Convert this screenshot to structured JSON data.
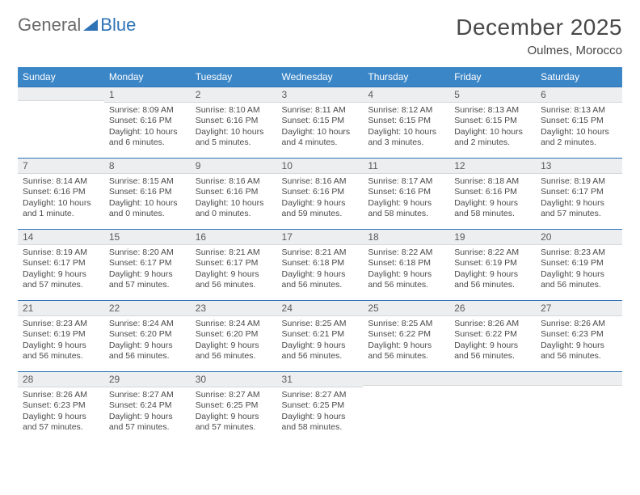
{
  "logo": {
    "text_general": "General",
    "text_blue": "Blue",
    "tri_color": "#2f73b6"
  },
  "title": "December 2025",
  "location": "Oulmes, Morocco",
  "colors": {
    "header_bg": "#3b86c7",
    "header_text": "#ffffff",
    "daynum_bg": "#eceef0",
    "daynum_border_top": "#2f73b6",
    "text": "#4a4a4a"
  },
  "day_headers": [
    "Sunday",
    "Monday",
    "Tuesday",
    "Wednesday",
    "Thursday",
    "Friday",
    "Saturday"
  ],
  "weeks": [
    [
      {
        "blank": true
      },
      {
        "n": "1",
        "sr": "Sunrise: 8:09 AM",
        "ss": "Sunset: 6:16 PM",
        "dl": "Daylight: 10 hours and 6 minutes."
      },
      {
        "n": "2",
        "sr": "Sunrise: 8:10 AM",
        "ss": "Sunset: 6:16 PM",
        "dl": "Daylight: 10 hours and 5 minutes."
      },
      {
        "n": "3",
        "sr": "Sunrise: 8:11 AM",
        "ss": "Sunset: 6:15 PM",
        "dl": "Daylight: 10 hours and 4 minutes."
      },
      {
        "n": "4",
        "sr": "Sunrise: 8:12 AM",
        "ss": "Sunset: 6:15 PM",
        "dl": "Daylight: 10 hours and 3 minutes."
      },
      {
        "n": "5",
        "sr": "Sunrise: 8:13 AM",
        "ss": "Sunset: 6:15 PM",
        "dl": "Daylight: 10 hours and 2 minutes."
      },
      {
        "n": "6",
        "sr": "Sunrise: 8:13 AM",
        "ss": "Sunset: 6:15 PM",
        "dl": "Daylight: 10 hours and 2 minutes."
      }
    ],
    [
      {
        "n": "7",
        "sr": "Sunrise: 8:14 AM",
        "ss": "Sunset: 6:16 PM",
        "dl": "Daylight: 10 hours and 1 minute."
      },
      {
        "n": "8",
        "sr": "Sunrise: 8:15 AM",
        "ss": "Sunset: 6:16 PM",
        "dl": "Daylight: 10 hours and 0 minutes."
      },
      {
        "n": "9",
        "sr": "Sunrise: 8:16 AM",
        "ss": "Sunset: 6:16 PM",
        "dl": "Daylight: 10 hours and 0 minutes."
      },
      {
        "n": "10",
        "sr": "Sunrise: 8:16 AM",
        "ss": "Sunset: 6:16 PM",
        "dl": "Daylight: 9 hours and 59 minutes."
      },
      {
        "n": "11",
        "sr": "Sunrise: 8:17 AM",
        "ss": "Sunset: 6:16 PM",
        "dl": "Daylight: 9 hours and 58 minutes."
      },
      {
        "n": "12",
        "sr": "Sunrise: 8:18 AM",
        "ss": "Sunset: 6:16 PM",
        "dl": "Daylight: 9 hours and 58 minutes."
      },
      {
        "n": "13",
        "sr": "Sunrise: 8:19 AM",
        "ss": "Sunset: 6:17 PM",
        "dl": "Daylight: 9 hours and 57 minutes."
      }
    ],
    [
      {
        "n": "14",
        "sr": "Sunrise: 8:19 AM",
        "ss": "Sunset: 6:17 PM",
        "dl": "Daylight: 9 hours and 57 minutes."
      },
      {
        "n": "15",
        "sr": "Sunrise: 8:20 AM",
        "ss": "Sunset: 6:17 PM",
        "dl": "Daylight: 9 hours and 57 minutes."
      },
      {
        "n": "16",
        "sr": "Sunrise: 8:21 AM",
        "ss": "Sunset: 6:17 PM",
        "dl": "Daylight: 9 hours and 56 minutes."
      },
      {
        "n": "17",
        "sr": "Sunrise: 8:21 AM",
        "ss": "Sunset: 6:18 PM",
        "dl": "Daylight: 9 hours and 56 minutes."
      },
      {
        "n": "18",
        "sr": "Sunrise: 8:22 AM",
        "ss": "Sunset: 6:18 PM",
        "dl": "Daylight: 9 hours and 56 minutes."
      },
      {
        "n": "19",
        "sr": "Sunrise: 8:22 AM",
        "ss": "Sunset: 6:19 PM",
        "dl": "Daylight: 9 hours and 56 minutes."
      },
      {
        "n": "20",
        "sr": "Sunrise: 8:23 AM",
        "ss": "Sunset: 6:19 PM",
        "dl": "Daylight: 9 hours and 56 minutes."
      }
    ],
    [
      {
        "n": "21",
        "sr": "Sunrise: 8:23 AM",
        "ss": "Sunset: 6:19 PM",
        "dl": "Daylight: 9 hours and 56 minutes."
      },
      {
        "n": "22",
        "sr": "Sunrise: 8:24 AM",
        "ss": "Sunset: 6:20 PM",
        "dl": "Daylight: 9 hours and 56 minutes."
      },
      {
        "n": "23",
        "sr": "Sunrise: 8:24 AM",
        "ss": "Sunset: 6:20 PM",
        "dl": "Daylight: 9 hours and 56 minutes."
      },
      {
        "n": "24",
        "sr": "Sunrise: 8:25 AM",
        "ss": "Sunset: 6:21 PM",
        "dl": "Daylight: 9 hours and 56 minutes."
      },
      {
        "n": "25",
        "sr": "Sunrise: 8:25 AM",
        "ss": "Sunset: 6:22 PM",
        "dl": "Daylight: 9 hours and 56 minutes."
      },
      {
        "n": "26",
        "sr": "Sunrise: 8:26 AM",
        "ss": "Sunset: 6:22 PM",
        "dl": "Daylight: 9 hours and 56 minutes."
      },
      {
        "n": "27",
        "sr": "Sunrise: 8:26 AM",
        "ss": "Sunset: 6:23 PM",
        "dl": "Daylight: 9 hours and 56 minutes."
      }
    ],
    [
      {
        "n": "28",
        "sr": "Sunrise: 8:26 AM",
        "ss": "Sunset: 6:23 PM",
        "dl": "Daylight: 9 hours and 57 minutes."
      },
      {
        "n": "29",
        "sr": "Sunrise: 8:27 AM",
        "ss": "Sunset: 6:24 PM",
        "dl": "Daylight: 9 hours and 57 minutes."
      },
      {
        "n": "30",
        "sr": "Sunrise: 8:27 AM",
        "ss": "Sunset: 6:25 PM",
        "dl": "Daylight: 9 hours and 57 minutes."
      },
      {
        "n": "31",
        "sr": "Sunrise: 8:27 AM",
        "ss": "Sunset: 6:25 PM",
        "dl": "Daylight: 9 hours and 58 minutes."
      },
      {
        "blank": true
      },
      {
        "blank": true
      },
      {
        "blank": true
      }
    ]
  ]
}
